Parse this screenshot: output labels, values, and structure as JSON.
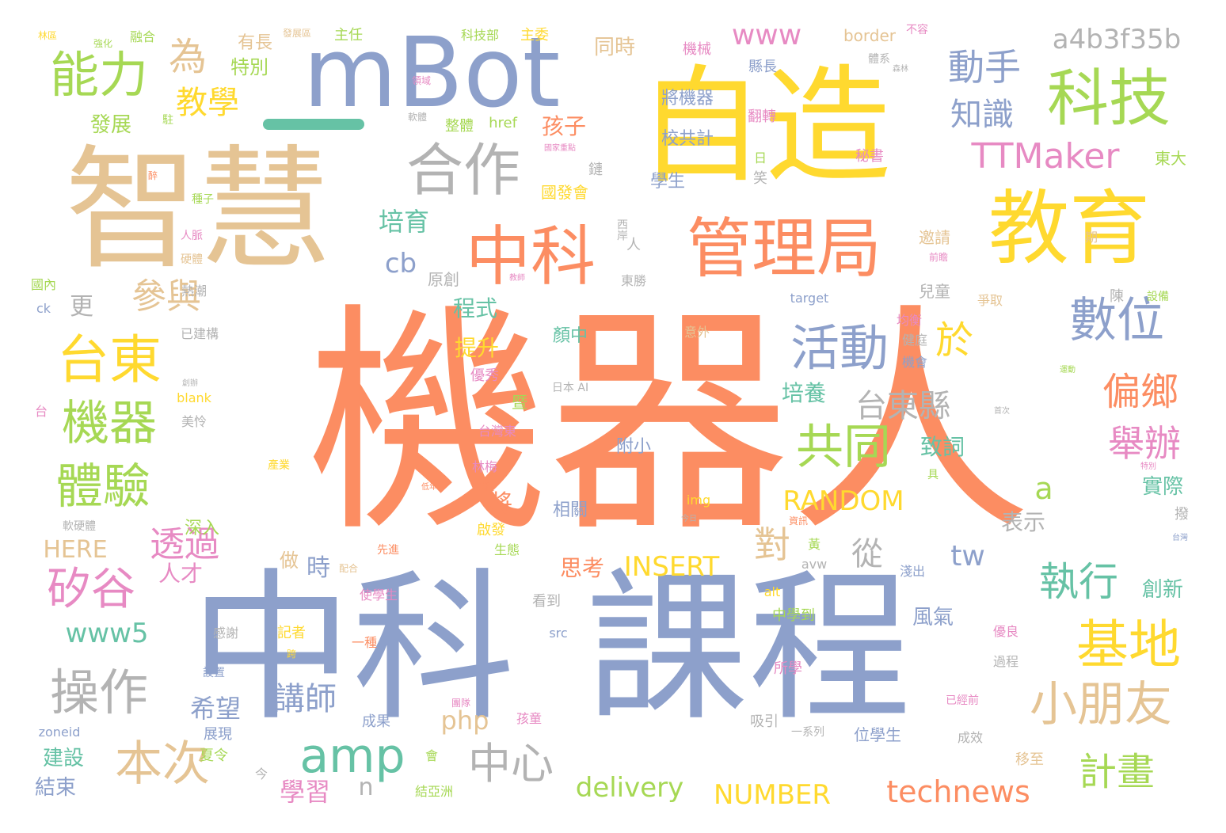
{
  "palette": {
    "orange": "#FC8D62",
    "blue": "#8DA0CB",
    "yellow": "#FFD92F",
    "tan": "#E5C494",
    "green": "#A6D854",
    "teal": "#66C2A5",
    "pink": "#E78AC3",
    "gray": "#B3B3B3"
  },
  "words": [
    {
      "text": "機器人",
      "color": "orange"
    },
    {
      "text": "中科",
      "color": "blue"
    },
    {
      "text": "課程",
      "color": "blue"
    },
    {
      "text": "智慧",
      "color": "tan"
    },
    {
      "text": "自造",
      "color": "yellow"
    },
    {
      "text": "mBot",
      "color": "blue"
    },
    {
      "text": "教育",
      "color": "yellow"
    },
    {
      "text": "管理局",
      "color": "orange"
    },
    {
      "text": "中科",
      "color": "orange"
    },
    {
      "text": "科技",
      "color": "green"
    },
    {
      "text": "合作",
      "color": "gray"
    },
    {
      "text": "能力",
      "color": "green"
    },
    {
      "text": "為",
      "color": "tan"
    },
    {
      "text": "教學",
      "color": "yellow"
    },
    {
      "text": "台東",
      "color": "yellow"
    },
    {
      "text": "機器",
      "color": "green"
    },
    {
      "text": "體驗",
      "color": "green"
    },
    {
      "text": "參與",
      "color": "tan"
    },
    {
      "text": "矽谷",
      "color": "pink"
    },
    {
      "text": "透過",
      "color": "pink"
    },
    {
      "text": "操作",
      "color": "gray"
    },
    {
      "text": "本次",
      "color": "tan"
    },
    {
      "text": "amp",
      "color": "teal"
    },
    {
      "text": "中心",
      "color": "gray"
    },
    {
      "text": "活動",
      "color": "blue"
    },
    {
      "text": "共同",
      "color": "green"
    },
    {
      "text": "數位",
      "color": "blue"
    },
    {
      "text": "於",
      "color": "yellow"
    },
    {
      "text": "基地",
      "color": "yellow"
    },
    {
      "text": "小朋友",
      "color": "tan"
    },
    {
      "text": "執行",
      "color": "teal"
    },
    {
      "text": "計畫",
      "color": "green"
    },
    {
      "text": "technews",
      "color": "orange"
    },
    {
      "text": "TTMaker",
      "color": "pink"
    },
    {
      "text": "動手",
      "color": "blue"
    },
    {
      "text": "知識",
      "color": "blue"
    },
    {
      "text": "www",
      "color": "pink"
    },
    {
      "text": "a4b3f35b",
      "color": "gray"
    },
    {
      "text": "偏鄉",
      "color": "orange"
    },
    {
      "text": "舉辦",
      "color": "pink"
    },
    {
      "text": "台東縣",
      "color": "gray"
    },
    {
      "text": "培養",
      "color": "teal"
    },
    {
      "text": "RANDOM",
      "color": "yellow"
    },
    {
      "text": "INSERT",
      "color": "yellow"
    },
    {
      "text": "NUMBER",
      "color": "yellow"
    },
    {
      "text": "delivery",
      "color": "green"
    },
    {
      "text": "www5",
      "color": "teal"
    },
    {
      "text": "HERE",
      "color": "tan"
    },
    {
      "text": "php",
      "color": "tan"
    },
    {
      "text": "tw",
      "color": "blue"
    },
    {
      "text": "cb",
      "color": "blue"
    },
    {
      "text": "a",
      "color": "green"
    },
    {
      "text": "對",
      "color": "tan"
    },
    {
      "text": "從",
      "color": "gray"
    },
    {
      "text": "講師",
      "color": "blue"
    },
    {
      "text": "希望",
      "color": "blue"
    },
    {
      "text": "時",
      "color": "blue"
    },
    {
      "text": "學習",
      "color": "pink"
    },
    {
      "text": "n",
      "color": "gray"
    },
    {
      "text": "培育",
      "color": "teal"
    },
    {
      "text": "程式",
      "color": "teal"
    },
    {
      "text": "提升",
      "color": "yellow"
    },
    {
      "text": "孩子",
      "color": "orange"
    },
    {
      "text": "同時",
      "color": "tan"
    },
    {
      "text": "發展",
      "color": "green"
    },
    {
      "text": "特別",
      "color": "green"
    },
    {
      "text": "有長",
      "color": "tan"
    },
    {
      "text": "更",
      "color": "gray"
    },
    {
      "text": "人才",
      "color": "pink"
    },
    {
      "text": "建設",
      "color": "teal"
    },
    {
      "text": "結束",
      "color": "blue"
    },
    {
      "text": "將",
      "color": "orange"
    },
    {
      "text": "表示",
      "color": "gray"
    },
    {
      "text": "致詞",
      "color": "teal"
    },
    {
      "text": "實際",
      "color": "teal"
    },
    {
      "text": "創新",
      "color": "teal"
    },
    {
      "text": "思考",
      "color": "orange"
    },
    {
      "text": "做",
      "color": "tan"
    },
    {
      "text": "深入",
      "color": "green"
    },
    {
      "text": "風氣",
      "color": "blue"
    },
    {
      "text": "將機器",
      "color": "blue"
    },
    {
      "text": "校共計",
      "color": "blue"
    },
    {
      "text": "學生",
      "color": "blue"
    },
    {
      "text": "顏中",
      "color": "teal"
    },
    {
      "text": "相關",
      "color": "blue"
    },
    {
      "text": "附小",
      "color": "blue"
    },
    {
      "text": "國發會",
      "color": "yellow"
    },
    {
      "text": "兒童",
      "color": "gray"
    },
    {
      "text": "邀請",
      "color": "tan"
    },
    {
      "text": "原創",
      "color": "gray"
    },
    {
      "text": "東大",
      "color": "green"
    },
    {
      "text": "border",
      "color": "tan"
    },
    {
      "text": "主委",
      "color": "yellow"
    },
    {
      "text": "主任",
      "color": "green"
    },
    {
      "text": "科技部",
      "color": "green"
    },
    {
      "text": "機械",
      "color": "pink"
    },
    {
      "text": "縣長",
      "color": "blue"
    },
    {
      "text": "翻轉",
      "color": "pink"
    },
    {
      "text": "秘書",
      "color": "pink"
    },
    {
      "text": "href",
      "color": "green"
    },
    {
      "text": "整體",
      "color": "green"
    },
    {
      "text": "看到",
      "color": "gray"
    },
    {
      "text": "所學",
      "color": "pink"
    },
    {
      "text": "中學到",
      "color": "green"
    },
    {
      "text": "位學生",
      "color": "blue"
    },
    {
      "text": "吸引",
      "color": "gray"
    },
    {
      "text": "成果",
      "color": "blue"
    },
    {
      "text": "展現",
      "color": "blue"
    },
    {
      "text": "夏令",
      "color": "green"
    },
    {
      "text": "移至",
      "color": "tan"
    },
    {
      "text": "成效",
      "color": "gray"
    },
    {
      "text": "過程",
      "color": "gray"
    },
    {
      "text": "優秀",
      "color": "pink"
    },
    {
      "text": "記者",
      "color": "yellow"
    },
    {
      "text": "感謝",
      "color": "gray"
    },
    {
      "text": "使學生",
      "color": "pink"
    },
    {
      "text": "孩童",
      "color": "pink"
    },
    {
      "text": "美怜",
      "color": "gray"
    },
    {
      "text": "已建構",
      "color": "gray"
    },
    {
      "text": "熱潮",
      "color": "gray"
    },
    {
      "text": "國內",
      "color": "green"
    },
    {
      "text": "target",
      "color": "blue"
    },
    {
      "text": "均衡",
      "color": "pink"
    },
    {
      "text": "健庭",
      "color": "gray"
    },
    {
      "text": "機會",
      "color": "blue"
    },
    {
      "text": "img",
      "color": "yellow"
    },
    {
      "text": "zoneid",
      "color": "blue"
    },
    {
      "text": "blank",
      "color": "yellow"
    },
    {
      "text": "ck",
      "color": "blue"
    },
    {
      "text": "src",
      "color": "blue"
    },
    {
      "text": "alt",
      "color": "yellow"
    },
    {
      "text": "avw",
      "color": "gray"
    },
    {
      "text": "淺出",
      "color": "blue"
    },
    {
      "text": "一系列",
      "color": "gray"
    },
    {
      "text": "結亞洲",
      "color": "green"
    },
    {
      "text": "東勝",
      "color": "gray"
    },
    {
      "text": "西岸",
      "color": "gray"
    },
    {
      "text": "笑",
      "color": "gray"
    },
    {
      "text": "日",
      "color": "green"
    },
    {
      "text": "鏈",
      "color": "gray"
    },
    {
      "text": "人",
      "color": "gray"
    },
    {
      "text": "陳",
      "color": "gray"
    },
    {
      "text": "期",
      "color": "tan"
    },
    {
      "text": "爭取",
      "color": "tan"
    },
    {
      "text": "黃",
      "color": "green"
    },
    {
      "text": "具",
      "color": "green"
    },
    {
      "text": "台",
      "color": "pink"
    },
    {
      "text": "會",
      "color": "green"
    },
    {
      "text": "今",
      "color": "gray"
    },
    {
      "text": "撥",
      "color": "gray"
    },
    {
      "text": "一種",
      "color": "orange"
    },
    {
      "text": "生態",
      "color": "green"
    },
    {
      "text": "啟發",
      "color": "yellow"
    },
    {
      "text": "優良",
      "color": "pink"
    },
    {
      "text": "林梅",
      "color": "pink"
    },
    {
      "text": "日本 AI",
      "color": "gray"
    },
    {
      "text": "台灣東",
      "color": "pink"
    },
    {
      "text": "暨",
      "color": "green"
    },
    {
      "text": "融合",
      "color": "green"
    },
    {
      "text": "強化",
      "color": "green"
    },
    {
      "text": "林區",
      "color": "yellow"
    },
    {
      "text": "發展區",
      "color": "tan"
    },
    {
      "text": "不容",
      "color": "pink"
    },
    {
      "text": "體系",
      "color": "gray"
    },
    {
      "text": "領域",
      "color": "pink"
    },
    {
      "text": "種子",
      "color": "green"
    },
    {
      "text": "人脈",
      "color": "pink"
    },
    {
      "text": "硬體",
      "color": "tan"
    },
    {
      "text": "軟硬體",
      "color": "gray"
    },
    {
      "text": "前瞻",
      "color": "pink"
    },
    {
      "text": "設備",
      "color": "green"
    },
    {
      "text": "產業",
      "color": "yellow"
    },
    {
      "text": "資訊",
      "color": "orange"
    },
    {
      "text": "課程",
      "color": "orange"
    },
    {
      "text": "配合",
      "color": "tan"
    },
    {
      "text": "跨",
      "color": "yellow"
    },
    {
      "text": "設置",
      "color": "blue"
    },
    {
      "text": "團隊",
      "color": "pink"
    },
    {
      "text": "已經前",
      "color": "pink"
    },
    {
      "text": "意外",
      "color": "tan"
    },
    {
      "text": "運動",
      "color": "green"
    },
    {
      "text": "駐",
      "color": "green"
    },
    {
      "text": "醉",
      "color": "orange"
    },
    {
      "text": "今日",
      "color": "gray"
    },
    {
      "text": "首次",
      "color": "gray"
    },
    {
      "text": "軟體",
      "color": "gray"
    },
    {
      "text": "國家重點",
      "color": "pink"
    },
    {
      "text": "創辦",
      "color": "gray"
    },
    {
      "text": "台灣",
      "color": "blue"
    },
    {
      "text": "先進",
      "color": "orange"
    },
    {
      "text": "低年",
      "color": "orange"
    },
    {
      "text": "教師",
      "color": "pink"
    },
    {
      "text": "森林",
      "color": "gray"
    },
    {
      "text": "特別",
      "color": "pink"
    }
  ]
}
